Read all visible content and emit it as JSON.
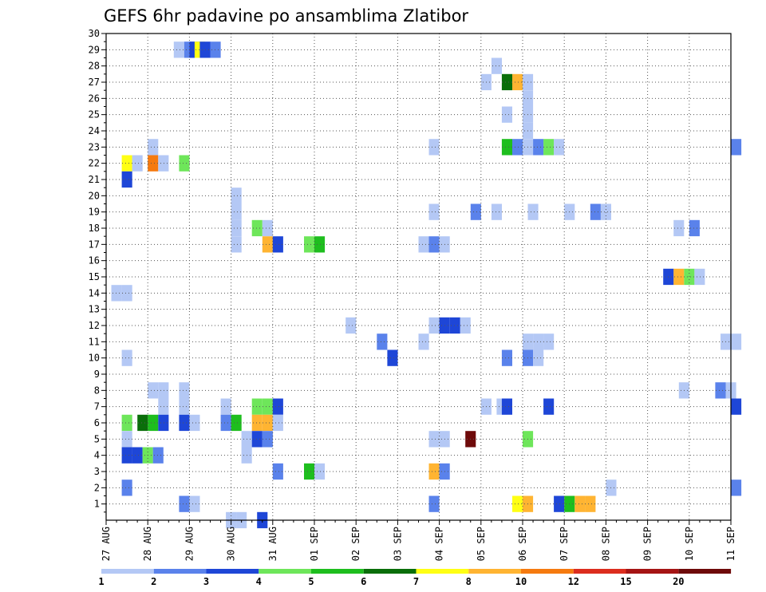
{
  "chart_data": {
    "type": "heatmap",
    "title": "GEFS 6hr padavine po ansamblima Zlatibor",
    "xlabel": "",
    "ylabel": "",
    "x_ticks": [
      "27 AUG",
      "28 AUG",
      "29 AUG",
      "30 AUG",
      "31 AUG",
      "01 SEP",
      "02 SEP",
      "03 SEP",
      "04 SEP",
      "05 SEP",
      "06 SEP",
      "07 SEP",
      "08 SEP",
      "09 SEP",
      "10 SEP",
      "11 SEP"
    ],
    "x_unit": "6-hour steps from 27 AUG 00Z",
    "y_ticks": [
      1,
      2,
      3,
      4,
      5,
      6,
      7,
      8,
      9,
      10,
      11,
      12,
      13,
      14,
      15,
      16,
      17,
      18,
      19,
      20,
      21,
      22,
      23,
      24,
      25,
      26,
      27,
      28,
      29,
      30
    ],
    "ylim": [
      0,
      30
    ],
    "grid": true,
    "colorbar": {
      "labels": [
        "1",
        "2",
        "3",
        "4",
        "5",
        "6",
        "7",
        "8",
        "10",
        "12",
        "15",
        "20"
      ],
      "colors": [
        "#b4c8f5",
        "#5a82eb",
        "#1e46d7",
        "#6ee65a",
        "#1ebe1e",
        "#0a6e0a",
        "#ffff14",
        "#ffb432",
        "#f57a0f",
        "#dc2d1e",
        "#a51414",
        "#6e0a0a"
      ]
    },
    "cells": [
      {
        "x": 6.5,
        "y": 29,
        "c": 1
      },
      {
        "x": 7.5,
        "y": 29,
        "c": 2
      },
      {
        "x": 8,
        "y": 29,
        "c": 3
      },
      {
        "x": 8.5,
        "y": 29,
        "c": 7
      },
      {
        "x": 9,
        "y": 29,
        "c": 3
      },
      {
        "x": 10,
        "y": 29,
        "c": 2
      },
      {
        "x": 37,
        "y": 28,
        "c": 1
      },
      {
        "x": 36,
        "y": 27,
        "c": 1
      },
      {
        "x": 38,
        "y": 27,
        "c": 6
      },
      {
        "x": 39,
        "y": 27,
        "c": 8
      },
      {
        "x": 40,
        "y": 27,
        "c": 1
      },
      {
        "x": 38,
        "y": 25,
        "c": 1
      },
      {
        "x": 40,
        "y": 24,
        "c": 1
      },
      {
        "x": 40,
        "y": 25,
        "c": 1
      },
      {
        "x": 40,
        "y": 26,
        "c": 1
      },
      {
        "x": 31,
        "y": 23,
        "c": 1
      },
      {
        "x": 38,
        "y": 23,
        "c": 5
      },
      {
        "x": 39,
        "y": 23,
        "c": 2
      },
      {
        "x": 40,
        "y": 23,
        "c": 1
      },
      {
        "x": 41,
        "y": 23,
        "c": 2
      },
      {
        "x": 42,
        "y": 23,
        "c": 4
      },
      {
        "x": 43,
        "y": 23,
        "c": 1
      },
      {
        "x": 60,
        "y": 23,
        "c": 2
      },
      {
        "x": 4,
        "y": 23,
        "c": 1
      },
      {
        "x": 1.5,
        "y": 22,
        "c": 7
      },
      {
        "x": 2.5,
        "y": 22,
        "c": 1
      },
      {
        "x": 4,
        "y": 22,
        "c": 9
      },
      {
        "x": 5,
        "y": 22,
        "c": 1
      },
      {
        "x": 7,
        "y": 22,
        "c": 4
      },
      {
        "x": 1.5,
        "y": 21,
        "c": 3
      },
      {
        "x": 12,
        "y": 20,
        "c": 1
      },
      {
        "x": 12,
        "y": 19,
        "c": 1
      },
      {
        "x": 12,
        "y": 18,
        "c": 1
      },
      {
        "x": 12,
        "y": 17,
        "c": 1
      },
      {
        "x": 31,
        "y": 19,
        "c": 1
      },
      {
        "x": 35,
        "y": 19,
        "c": 2
      },
      {
        "x": 37,
        "y": 19,
        "c": 1
      },
      {
        "x": 40.5,
        "y": 19,
        "c": 1
      },
      {
        "x": 44,
        "y": 19,
        "c": 1
      },
      {
        "x": 46.5,
        "y": 19,
        "c": 2
      },
      {
        "x": 47.5,
        "y": 19,
        "c": 1
      },
      {
        "x": 14,
        "y": 18,
        "c": 4
      },
      {
        "x": 15,
        "y": 18,
        "c": 1
      },
      {
        "x": 54.5,
        "y": 18,
        "c": 1
      },
      {
        "x": 56,
        "y": 18,
        "c": 2
      },
      {
        "x": 15,
        "y": 17,
        "c": 8
      },
      {
        "x": 16,
        "y": 17,
        "c": 3
      },
      {
        "x": 19,
        "y": 17,
        "c": 4
      },
      {
        "x": 20,
        "y": 17,
        "c": 5
      },
      {
        "x": 30,
        "y": 17,
        "c": 1
      },
      {
        "x": 31,
        "y": 17,
        "c": 2
      },
      {
        "x": 32,
        "y": 17,
        "c": 1
      },
      {
        "x": 53.5,
        "y": 15,
        "c": 3
      },
      {
        "x": 54.5,
        "y": 15,
        "c": 8
      },
      {
        "x": 55.5,
        "y": 15,
        "c": 4
      },
      {
        "x": 56.5,
        "y": 15,
        "c": 1
      },
      {
        "x": 0.5,
        "y": 14,
        "c": 1
      },
      {
        "x": 1.5,
        "y": 14,
        "c": 1
      },
      {
        "x": 23,
        "y": 12,
        "c": 1
      },
      {
        "x": 31,
        "y": 12,
        "c": 1
      },
      {
        "x": 32,
        "y": 12,
        "c": 3
      },
      {
        "x": 33,
        "y": 12,
        "c": 3
      },
      {
        "x": 34,
        "y": 12,
        "c": 1
      },
      {
        "x": 26,
        "y": 11,
        "c": 2
      },
      {
        "x": 30,
        "y": 11,
        "c": 1
      },
      {
        "x": 40,
        "y": 11,
        "c": 1
      },
      {
        "x": 41,
        "y": 11,
        "c": 1
      },
      {
        "x": 42,
        "y": 11,
        "c": 1
      },
      {
        "x": 59,
        "y": 11,
        "c": 1
      },
      {
        "x": 60,
        "y": 11,
        "c": 1
      },
      {
        "x": 27,
        "y": 10,
        "c": 3
      },
      {
        "x": 38,
        "y": 10,
        "c": 2
      },
      {
        "x": 40,
        "y": 10,
        "c": 2
      },
      {
        "x": 41,
        "y": 10,
        "c": 1
      },
      {
        "x": 1.5,
        "y": 10,
        "c": 1
      },
      {
        "x": 4,
        "y": 8,
        "c": 1
      },
      {
        "x": 5,
        "y": 8,
        "c": 1
      },
      {
        "x": 7,
        "y": 8,
        "c": 1
      },
      {
        "x": 55,
        "y": 8,
        "c": 1
      },
      {
        "x": 58.5,
        "y": 8,
        "c": 2
      },
      {
        "x": 59.5,
        "y": 8,
        "c": 1
      },
      {
        "x": 5,
        "y": 7,
        "c": 1
      },
      {
        "x": 7,
        "y": 7,
        "c": 1
      },
      {
        "x": 11,
        "y": 7,
        "c": 1
      },
      {
        "x": 14,
        "y": 7,
        "c": 4
      },
      {
        "x": 15,
        "y": 7,
        "c": 4
      },
      {
        "x": 16,
        "y": 7,
        "c": 3
      },
      {
        "x": 36,
        "y": 7,
        "c": 1
      },
      {
        "x": 37.5,
        "y": 7,
        "c": 1
      },
      {
        "x": 38,
        "y": 7,
        "c": 3
      },
      {
        "x": 42,
        "y": 7,
        "c": 3
      },
      {
        "x": 60,
        "y": 7,
        "c": 3
      },
      {
        "x": 1.5,
        "y": 6,
        "c": 4
      },
      {
        "x": 3,
        "y": 6,
        "c": 6
      },
      {
        "x": 4,
        "y": 6,
        "c": 5
      },
      {
        "x": 5,
        "y": 6,
        "c": 3
      },
      {
        "x": 7,
        "y": 6,
        "c": 3
      },
      {
        "x": 8,
        "y": 6,
        "c": 1
      },
      {
        "x": 11,
        "y": 6,
        "c": 2
      },
      {
        "x": 12,
        "y": 6,
        "c": 5
      },
      {
        "x": 14,
        "y": 6,
        "c": 8
      },
      {
        "x": 15,
        "y": 6,
        "c": 8
      },
      {
        "x": 16,
        "y": 6,
        "c": 1
      },
      {
        "x": 1.5,
        "y": 5,
        "c": 1
      },
      {
        "x": 13,
        "y": 5,
        "c": 1
      },
      {
        "x": 14,
        "y": 5,
        "c": 3
      },
      {
        "x": 15,
        "y": 5,
        "c": 2
      },
      {
        "x": 31,
        "y": 5,
        "c": 1
      },
      {
        "x": 32,
        "y": 5,
        "c": 1
      },
      {
        "x": 34.5,
        "y": 5,
        "c": 12
      },
      {
        "x": 40,
        "y": 5,
        "c": 4
      },
      {
        "x": 1.5,
        "y": 4,
        "c": 3
      },
      {
        "x": 2.5,
        "y": 4,
        "c": 3
      },
      {
        "x": 3.5,
        "y": 4,
        "c": 4
      },
      {
        "x": 4.5,
        "y": 4,
        "c": 2
      },
      {
        "x": 13,
        "y": 4,
        "c": 1
      },
      {
        "x": 16,
        "y": 3,
        "c": 2
      },
      {
        "x": 19,
        "y": 3,
        "c": 5
      },
      {
        "x": 20,
        "y": 3,
        "c": 1
      },
      {
        "x": 31,
        "y": 3,
        "c": 8
      },
      {
        "x": 32,
        "y": 3,
        "c": 2
      },
      {
        "x": 1.5,
        "y": 2,
        "c": 2
      },
      {
        "x": 48,
        "y": 2,
        "c": 1
      },
      {
        "x": 60,
        "y": 2,
        "c": 2
      },
      {
        "x": 7,
        "y": 1,
        "c": 2
      },
      {
        "x": 8,
        "y": 1,
        "c": 1
      },
      {
        "x": 31,
        "y": 1,
        "c": 2
      },
      {
        "x": 39,
        "y": 1,
        "c": 7
      },
      {
        "x": 40,
        "y": 1,
        "c": 8
      },
      {
        "x": 43,
        "y": 1,
        "c": 3
      },
      {
        "x": 44,
        "y": 1,
        "c": 5
      },
      {
        "x": 45,
        "y": 1,
        "c": 8
      },
      {
        "x": 46,
        "y": 1,
        "c": 8
      },
      {
        "x": 11.5,
        "y": 0,
        "c": 1
      },
      {
        "x": 12.5,
        "y": 0,
        "c": 1
      },
      {
        "x": 14.5,
        "y": 0,
        "c": 3
      }
    ]
  }
}
